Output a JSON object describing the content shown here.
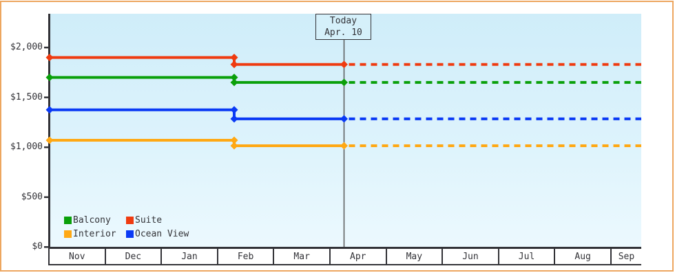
{
  "colors": {
    "frame_border": "#eda65f",
    "axis": "#323237",
    "text": "#323237",
    "today_line": "#555555",
    "plot_bg_top": "#cfedf9",
    "plot_bg_bottom": "#ecf9fe",
    "today_box_bg": "#d5f0fa"
  },
  "chart_data": {
    "type": "line",
    "title": "",
    "xlabel": "",
    "ylabel": "",
    "y_axis": {
      "min": 0,
      "max": 2000,
      "tick_values": [
        0,
        500,
        1000,
        1500,
        2000
      ],
      "tick_labels": [
        "$0",
        "$500",
        "$1,000",
        "$1,500",
        "$2,000"
      ]
    },
    "x_categories": [
      "Nov",
      "Dec",
      "Jan",
      "Feb",
      "Mar",
      "Apr",
      "May",
      "Jun",
      "Jul",
      "Aug",
      "Sep"
    ],
    "today_annotation": {
      "line1": "Today",
      "line2": "Apr. 10"
    },
    "layout_hints": {
      "grid": false,
      "legend_position": "bottom-left-inside",
      "forecast_style": "dotted-after-today",
      "price_drop_month": "Feb",
      "today_month_position": "Apr"
    },
    "series": [
      {
        "name": "Balcony",
        "color": "#0aa00a",
        "initial_price": 1700,
        "current_price": 1650
      },
      {
        "name": "Suite",
        "color": "#ef3b10",
        "initial_price": 1900,
        "current_price": 1830
      },
      {
        "name": "Interior",
        "color": "#ffa814",
        "initial_price": 1070,
        "current_price": 1015
      },
      {
        "name": "Ocean View",
        "color": "#0a3af5",
        "initial_price": 1375,
        "current_price": 1285
      }
    ]
  }
}
